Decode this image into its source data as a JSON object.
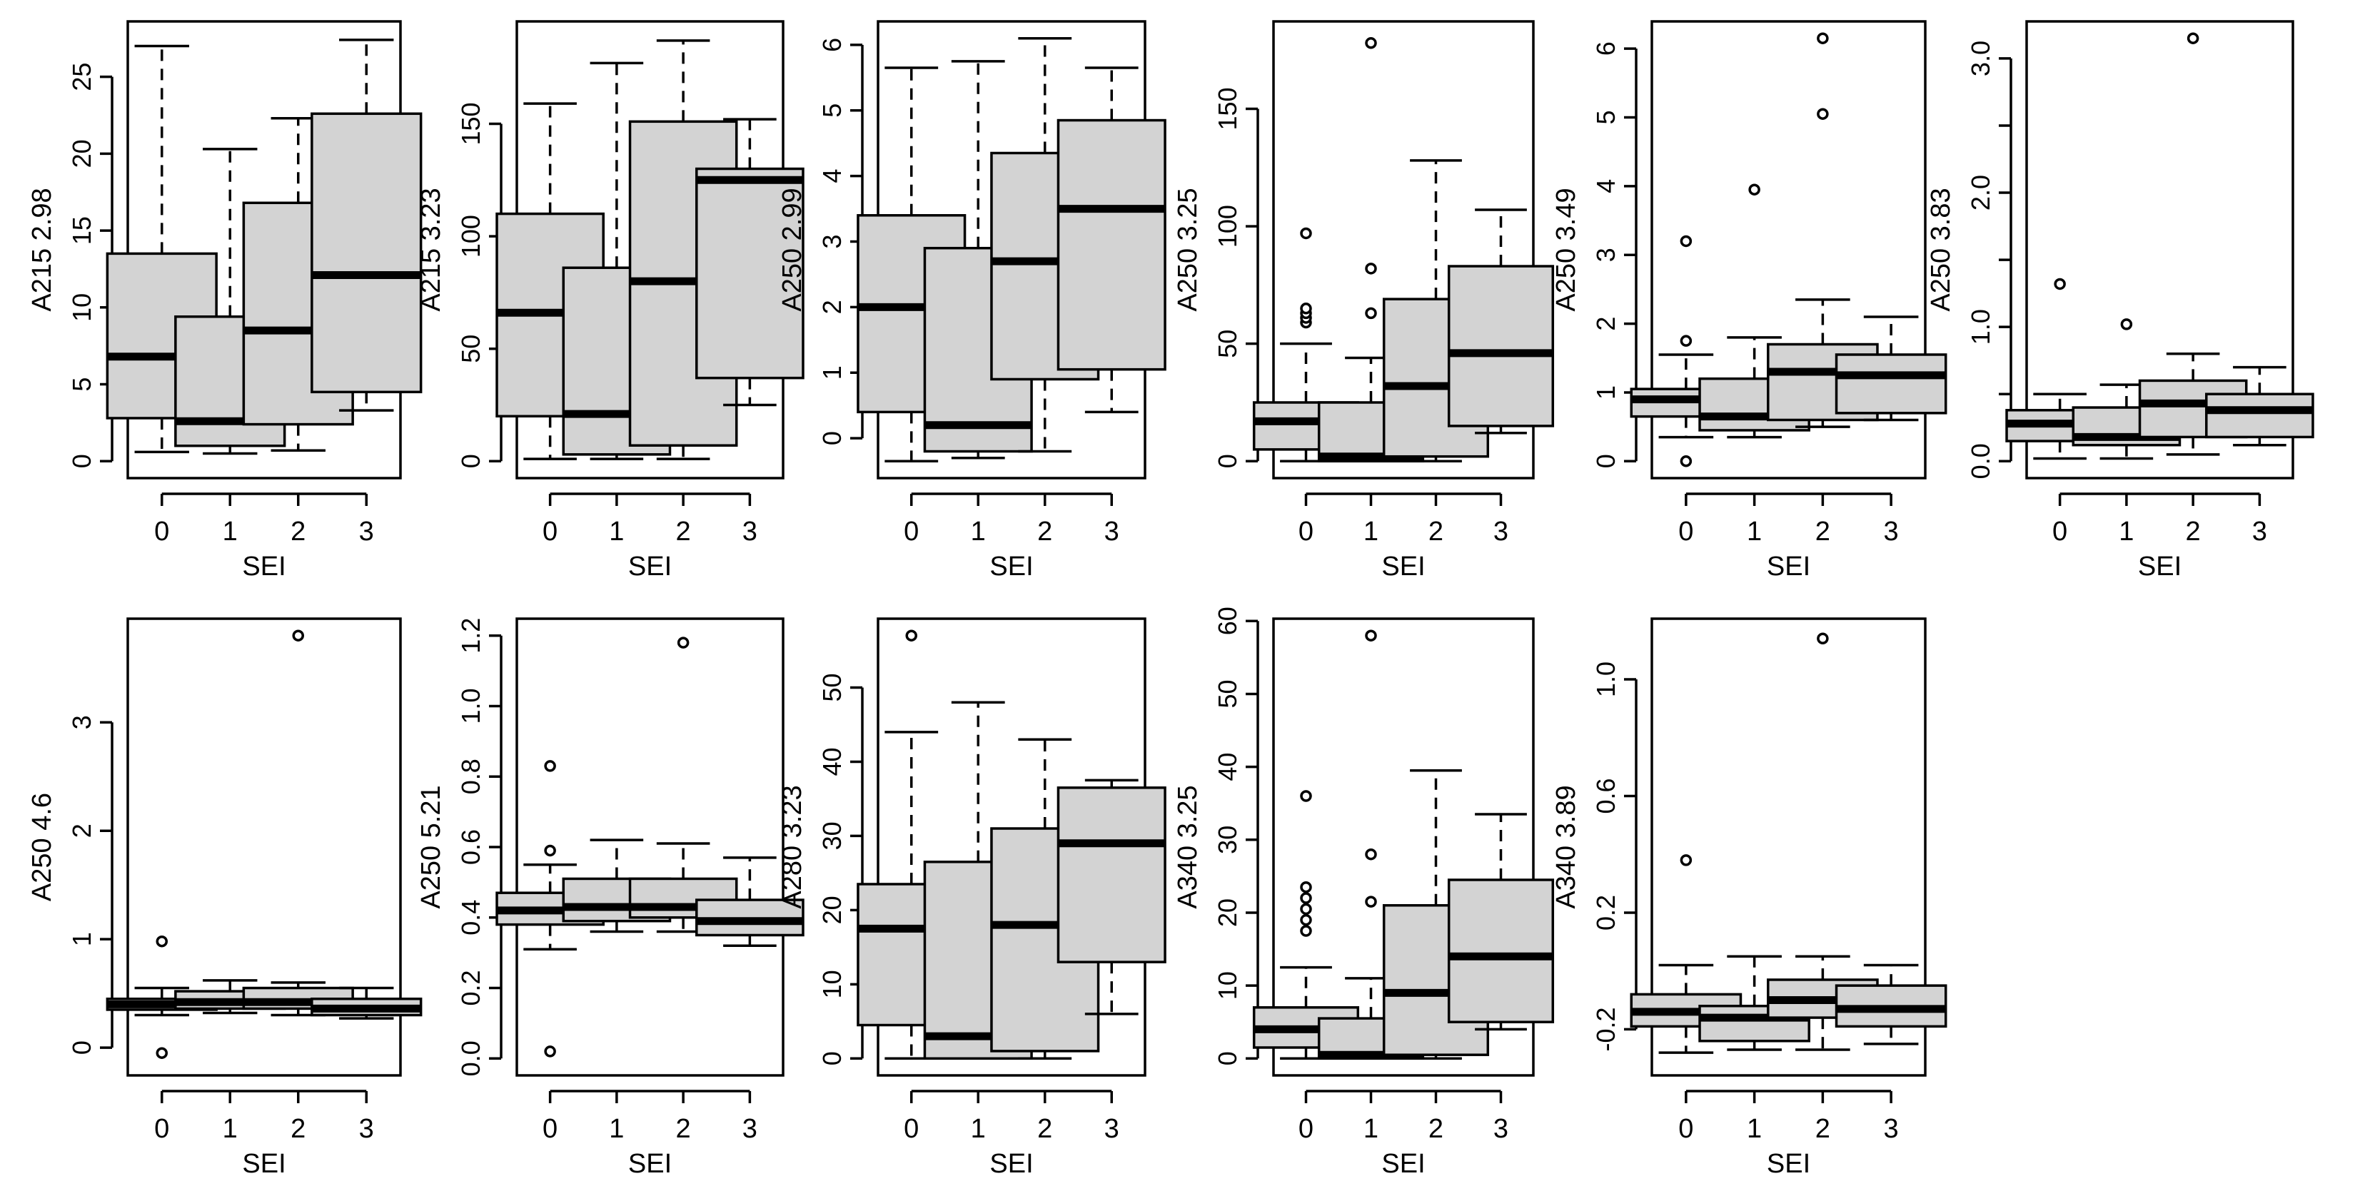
{
  "colors": {
    "box_fill": "#d3d3d3",
    "stroke": "#000000",
    "background": "#ffffff"
  },
  "chart_data": [
    {
      "type": "boxplot",
      "ylabel": "A215 2.98",
      "xlabel": "SEI",
      "categories": [
        "0",
        "1",
        "2",
        "3"
      ],
      "ylim": [
        0,
        27.5
      ],
      "yticks": [
        0,
        5,
        10,
        15,
        20,
        25
      ],
      "ytick_labels": [
        "0",
        "5",
        "10",
        "15",
        "20",
        "25"
      ],
      "boxes": [
        {
          "min": 0.6,
          "q1": 2.8,
          "median": 6.8,
          "q3": 13.5,
          "max": 27.0,
          "outliers": []
        },
        {
          "min": 0.5,
          "q1": 1.0,
          "median": 2.6,
          "q3": 9.4,
          "max": 20.3,
          "outliers": []
        },
        {
          "min": 0.7,
          "q1": 2.4,
          "median": 8.5,
          "q3": 16.8,
          "max": 22.3,
          "outliers": []
        },
        {
          "min": 3.3,
          "q1": 4.5,
          "median": 12.1,
          "q3": 22.6,
          "max": 27.4,
          "outliers": []
        }
      ]
    },
    {
      "type": "boxplot",
      "ylabel": "A215 3.23",
      "xlabel": "SEI",
      "categories": [
        "0",
        "1",
        "2",
        "3"
      ],
      "ylim": [
        0,
        188
      ],
      "yticks": [
        0,
        50,
        100,
        150
      ],
      "ytick_labels": [
        "0",
        "50",
        "100",
        "150"
      ],
      "boxes": [
        {
          "min": 1,
          "q1": 20,
          "median": 66,
          "q3": 110,
          "max": 159,
          "outliers": []
        },
        {
          "min": 1,
          "q1": 3,
          "median": 21,
          "q3": 86,
          "max": 177,
          "outliers": []
        },
        {
          "min": 1,
          "q1": 7,
          "median": 80,
          "q3": 151,
          "max": 187,
          "outliers": []
        },
        {
          "min": 25,
          "q1": 37,
          "median": 125,
          "q3": 130,
          "max": 152,
          "outliers": []
        }
      ]
    },
    {
      "type": "boxplot",
      "ylabel": "A250 2.99",
      "xlabel": "SEI",
      "categories": [
        "0",
        "1",
        "2",
        "3"
      ],
      "ylim": [
        -0.35,
        6.1
      ],
      "yticks": [
        0,
        1,
        2,
        3,
        4,
        5,
        6
      ],
      "ytick_labels": [
        "0",
        "1",
        "2",
        "3",
        "4",
        "5",
        "6"
      ],
      "boxes": [
        {
          "min": -0.35,
          "q1": 0.4,
          "median": 2.0,
          "q3": 3.4,
          "max": 5.65,
          "outliers": []
        },
        {
          "min": -0.3,
          "q1": -0.2,
          "median": 0.2,
          "q3": 2.9,
          "max": 5.75,
          "outliers": []
        },
        {
          "min": -0.2,
          "q1": 0.9,
          "median": 2.7,
          "q3": 4.35,
          "max": 6.1,
          "outliers": []
        },
        {
          "min": 0.4,
          "q1": 1.05,
          "median": 3.5,
          "q3": 4.85,
          "max": 5.65,
          "outliers": []
        }
      ]
    },
    {
      "type": "boxplot",
      "ylabel": "A250 3.25",
      "xlabel": "SEI",
      "categories": [
        "0",
        "1",
        "2",
        "3"
      ],
      "ylim": [
        0,
        180
      ],
      "yticks": [
        0,
        50,
        100,
        150
      ],
      "ytick_labels": [
        "0",
        "50",
        "100",
        "150"
      ],
      "boxes": [
        {
          "min": 0,
          "q1": 5,
          "median": 17,
          "q3": 25,
          "max": 50,
          "outliers": [
            59,
            61,
            63,
            65,
            97
          ]
        },
        {
          "min": 0,
          "q1": 0,
          "median": 2,
          "q3": 25,
          "max": 44,
          "outliers": [
            63,
            82,
            178
          ]
        },
        {
          "min": 0,
          "q1": 2,
          "median": 32,
          "q3": 69,
          "max": 128,
          "outliers": []
        },
        {
          "min": 12,
          "q1": 15,
          "median": 46,
          "q3": 83,
          "max": 107,
          "outliers": []
        }
      ]
    },
    {
      "type": "boxplot",
      "ylabel": "A250 3.49",
      "xlabel": "SEI",
      "categories": [
        "0",
        "1",
        "2",
        "3"
      ],
      "ylim": [
        0,
        6.15
      ],
      "yticks": [
        0,
        1,
        2,
        3,
        4,
        5,
        6
      ],
      "ytick_labels": [
        "0",
        "1",
        "2",
        "3",
        "4",
        "5",
        "6"
      ],
      "boxes": [
        {
          "min": 0.35,
          "q1": 0.65,
          "median": 0.9,
          "q3": 1.05,
          "max": 1.55,
          "outliers": [
            0.0,
            1.75,
            3.2
          ]
        },
        {
          "min": 0.35,
          "q1": 0.45,
          "median": 0.65,
          "q3": 1.2,
          "max": 1.8,
          "outliers": [
            3.95
          ]
        },
        {
          "min": 0.5,
          "q1": 0.6,
          "median": 1.3,
          "q3": 1.7,
          "max": 2.35,
          "outliers": [
            5.05,
            6.15
          ]
        },
        {
          "min": 0.6,
          "q1": 0.7,
          "median": 1.25,
          "q3": 1.55,
          "max": 2.1,
          "outliers": []
        }
      ]
    },
    {
      "type": "boxplot",
      "ylabel": "A250 3.83",
      "xlabel": "SEI",
      "categories": [
        "0",
        "1",
        "2",
        "3"
      ],
      "ylim": [
        0,
        3.15
      ],
      "yticks": [
        0,
        0.5,
        1.0,
        1.5,
        2.0,
        2.5,
        3.0
      ],
      "ytick_labels": [
        "0.0",
        "",
        "1.0",
        "",
        "2.0",
        "",
        "3.0"
      ],
      "boxes": [
        {
          "min": 0.02,
          "q1": 0.15,
          "median": 0.28,
          "q3": 0.38,
          "max": 0.5,
          "outliers": [
            1.32
          ]
        },
        {
          "min": 0.02,
          "q1": 0.12,
          "median": 0.18,
          "q3": 0.4,
          "max": 0.57,
          "outliers": [
            1.02
          ]
        },
        {
          "min": 0.05,
          "q1": 0.18,
          "median": 0.43,
          "q3": 0.6,
          "max": 0.8,
          "outliers": [
            3.15
          ]
        },
        {
          "min": 0.12,
          "q1": 0.18,
          "median": 0.38,
          "q3": 0.5,
          "max": 0.7,
          "outliers": []
        }
      ]
    },
    {
      "type": "boxplot",
      "ylabel": "A250 4.6",
      "xlabel": "SEI",
      "categories": [
        "0",
        "1",
        "2",
        "3"
      ],
      "ylim": [
        -0.1,
        3.8
      ],
      "yticks": [
        0,
        1,
        2,
        3
      ],
      "ytick_labels": [
        "0",
        "1",
        "2",
        "3"
      ],
      "boxes": [
        {
          "min": 0.3,
          "q1": 0.35,
          "median": 0.4,
          "q3": 0.45,
          "max": 0.55,
          "outliers": [
            -0.05,
            0.98
          ]
        },
        {
          "min": 0.32,
          "q1": 0.36,
          "median": 0.42,
          "q3": 0.52,
          "max": 0.62,
          "outliers": []
        },
        {
          "min": 0.3,
          "q1": 0.36,
          "median": 0.42,
          "q3": 0.55,
          "max": 0.6,
          "outliers": [
            3.8
          ]
        },
        {
          "min": 0.27,
          "q1": 0.3,
          "median": 0.36,
          "q3": 0.45,
          "max": 0.55,
          "outliers": []
        }
      ]
    },
    {
      "type": "boxplot",
      "ylabel": "A250 5.21",
      "xlabel": "SEI",
      "categories": [
        "0",
        "1",
        "2",
        "3"
      ],
      "ylim": [
        0.0,
        1.2
      ],
      "yticks": [
        0.0,
        0.2,
        0.4,
        0.6,
        0.8,
        1.0,
        1.2
      ],
      "ytick_labels": [
        "0.0",
        "0.2",
        "0.4",
        "0.6",
        "0.8",
        "1.0",
        "1.2"
      ],
      "boxes": [
        {
          "min": 0.31,
          "q1": 0.38,
          "median": 0.42,
          "q3": 0.47,
          "max": 0.55,
          "outliers": [
            0.02,
            0.59,
            0.83
          ]
        },
        {
          "min": 0.36,
          "q1": 0.39,
          "median": 0.43,
          "q3": 0.51,
          "max": 0.62,
          "outliers": []
        },
        {
          "min": 0.36,
          "q1": 0.4,
          "median": 0.43,
          "q3": 0.51,
          "max": 0.61,
          "outliers": [
            1.18
          ]
        },
        {
          "min": 0.32,
          "q1": 0.35,
          "median": 0.39,
          "q3": 0.45,
          "max": 0.57,
          "outliers": []
        }
      ]
    },
    {
      "type": "boxplot",
      "ylabel": "A280 3.23",
      "xlabel": "SEI",
      "categories": [
        "0",
        "1",
        "2",
        "3"
      ],
      "ylim": [
        0,
        57
      ],
      "yticks": [
        0,
        10,
        20,
        30,
        40,
        50
      ],
      "ytick_labels": [
        "0",
        "10",
        "20",
        "30",
        "40",
        "50"
      ],
      "boxes": [
        {
          "min": 0,
          "q1": 4.5,
          "median": 17.5,
          "q3": 23.5,
          "max": 44,
          "outliers": [
            57
          ]
        },
        {
          "min": 0,
          "q1": 0,
          "median": 3,
          "q3": 26.5,
          "max": 48,
          "outliers": []
        },
        {
          "min": 0,
          "q1": 1,
          "median": 18,
          "q3": 31,
          "max": 43,
          "outliers": []
        },
        {
          "min": 6,
          "q1": 13,
          "median": 29,
          "q3": 36.5,
          "max": 37.5,
          "outliers": []
        }
      ]
    },
    {
      "type": "boxplot",
      "ylabel": "A340 3.25",
      "xlabel": "SEI",
      "categories": [
        "0",
        "1",
        "2",
        "3"
      ],
      "ylim": [
        0,
        58
      ],
      "yticks": [
        0,
        10,
        20,
        30,
        40,
        50,
        60
      ],
      "ytick_labels": [
        "0",
        "10",
        "20",
        "30",
        "40",
        "50",
        "60"
      ],
      "boxes": [
        {
          "min": 0,
          "q1": 1.5,
          "median": 4,
          "q3": 7,
          "max": 12.5,
          "outliers": [
            17.5,
            19,
            20.5,
            22,
            23.5,
            36
          ]
        },
        {
          "min": 0,
          "q1": 0,
          "median": 0.5,
          "q3": 5.5,
          "max": 11,
          "outliers": [
            21.5,
            28,
            58
          ]
        },
        {
          "min": 0,
          "q1": 0.5,
          "median": 9,
          "q3": 21,
          "max": 39.5,
          "outliers": []
        },
        {
          "min": 4,
          "q1": 5,
          "median": 14,
          "q3": 24.5,
          "max": 33.5,
          "outliers": []
        }
      ]
    },
    {
      "type": "boxplot",
      "ylabel": "A340 3.89",
      "xlabel": "SEI",
      "categories": [
        "0",
        "1",
        "2",
        "3"
      ],
      "ylim": [
        -0.3,
        1.15
      ],
      "yticks": [
        -0.2,
        0.2,
        0.6,
        1.0
      ],
      "ytick_labels": [
        "-0.2",
        "0.2",
        "0.6",
        "1.0"
      ],
      "boxes": [
        {
          "min": -0.28,
          "q1": -0.19,
          "median": -0.14,
          "q3": -0.08,
          "max": 0.02,
          "outliers": [
            0.38
          ]
        },
        {
          "min": -0.27,
          "q1": -0.24,
          "median": -0.16,
          "q3": -0.12,
          "max": 0.05,
          "outliers": []
        },
        {
          "min": -0.27,
          "q1": -0.16,
          "median": -0.1,
          "q3": -0.03,
          "max": 0.05,
          "outliers": [
            1.14
          ]
        },
        {
          "min": -0.25,
          "q1": -0.19,
          "median": -0.13,
          "q3": -0.05,
          "max": 0.02,
          "outliers": []
        }
      ]
    }
  ]
}
